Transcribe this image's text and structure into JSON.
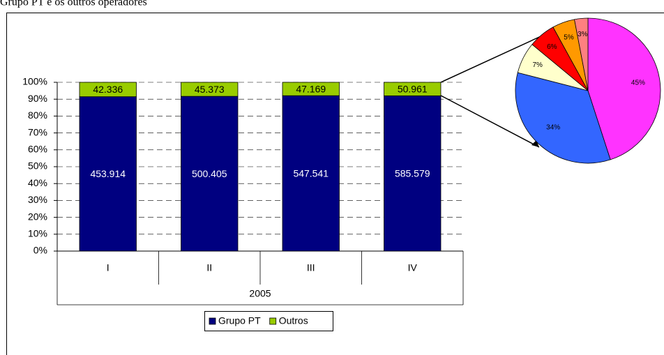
{
  "chart_data": [
    {
      "type": "bar",
      "stacked_percent": true,
      "title": "Grupo PT e os outros operadores",
      "categories": [
        "I",
        "II",
        "III",
        "IV"
      ],
      "group_label": "2005",
      "series": [
        {
          "name": "Grupo PT",
          "color": "#000080",
          "label_color": "#ffffff",
          "values": [
            453914,
            500405,
            547541,
            585579
          ],
          "value_labels": [
            "453.914",
            "500.405",
            "547.541",
            "585.579"
          ]
        },
        {
          "name": "Outros",
          "color": "#99cc00",
          "label_color": "#000000",
          "values": [
            42336,
            45373,
            47169,
            50961
          ],
          "value_labels": [
            "42.336",
            "45.373",
            "47.169",
            "50.961"
          ]
        }
      ],
      "ylim": [
        0,
        100
      ],
      "yticks": [
        {
          "value": 0,
          "label": "0%"
        },
        {
          "value": 10,
          "label": "10%"
        },
        {
          "value": 20,
          "label": "20%"
        },
        {
          "value": 30,
          "label": "30%"
        },
        {
          "value": 40,
          "label": "40%"
        },
        {
          "value": 50,
          "label": "50%"
        },
        {
          "value": 60,
          "label": "60%"
        },
        {
          "value": 70,
          "label": "70%"
        },
        {
          "value": 80,
          "label": "80%"
        },
        {
          "value": 90,
          "label": "90%"
        },
        {
          "value": 100,
          "label": "100%"
        }
      ],
      "grid": true,
      "legend": "bottom"
    },
    {
      "type": "pie",
      "values": [
        45,
        34,
        7,
        6,
        5,
        3
      ],
      "value_labels": [
        "45%",
        "34%",
        "7%",
        "6%",
        "5%",
        "3%"
      ],
      "colors": [
        "#ff33ff",
        "#3366ff",
        "#ffffcc",
        "#ff0000",
        "#ff9900",
        "#ff8080"
      ]
    }
  ]
}
